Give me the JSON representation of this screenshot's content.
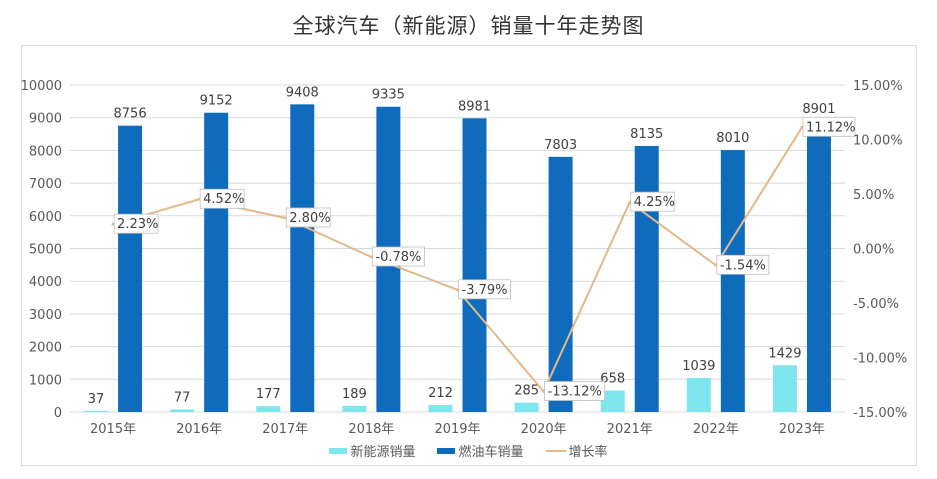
{
  "chart_data": {
    "type": "bar",
    "title": "全球汽车（新能源）销量十年走势图",
    "categories": [
      "2015年",
      "2016年",
      "2017年",
      "2018年",
      "2019年",
      "2020年",
      "2021年",
      "2022年",
      "2023年"
    ],
    "series": [
      {
        "name": "新能源销量",
        "type": "bar",
        "axis": "left",
        "color": "#7fe6ee",
        "values": [
          37,
          77,
          177,
          189,
          212,
          285,
          658,
          1039,
          1429
        ]
      },
      {
        "name": "燃油车销量",
        "type": "bar",
        "axis": "left",
        "color": "#0f6cbd",
        "values": [
          8756,
          9152,
          9408,
          9335,
          8981,
          7803,
          8135,
          8010,
          8901
        ]
      },
      {
        "name": "增长率",
        "type": "line",
        "axis": "right",
        "color": "#e3b98a",
        "values": [
          2.23,
          4.52,
          2.8,
          -0.78,
          -3.79,
          -13.12,
          4.25,
          -1.54,
          11.12
        ],
        "labels": [
          "2.23%",
          "4.52%",
          "2.80%",
          "-0.78%",
          "-3.79%",
          "-13.12%",
          "4.25%",
          "-1.54%",
          "11.12%"
        ]
      }
    ],
    "left_axis": {
      "ylim": [
        0,
        10000
      ],
      "ticks": [
        "0",
        "1000",
        "2000",
        "3000",
        "4000",
        "5000",
        "6000",
        "7000",
        "8000",
        "9000",
        "10000"
      ]
    },
    "right_axis": {
      "ylim": [
        -15,
        15
      ],
      "ticks": [
        "-15.00%",
        "-10.00%",
        "-5.00%",
        "0.00%",
        "5.00%",
        "10.00%",
        "15.00%"
      ]
    },
    "xlabel": "",
    "ylabel": "",
    "grid": true,
    "legend": "bottom-center"
  }
}
